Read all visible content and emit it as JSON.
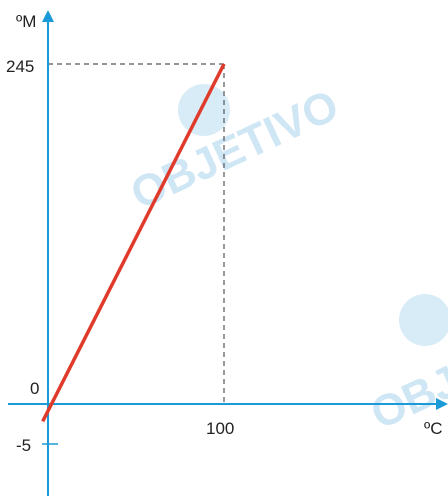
{
  "chart_data": {
    "type": "line",
    "title": "",
    "xlabel": "ºC",
    "ylabel": "ºM",
    "x_ticks": [
      "100"
    ],
    "y_ticks": [
      "245",
      "0",
      "-5"
    ],
    "series": [
      {
        "x": [
          -3,
          0,
          100
        ],
        "y": [
          -12.5,
          -5,
          245
        ]
      }
    ],
    "reference_point": {
      "x": 100,
      "y": 245
    },
    "guides": "dashed",
    "grid": false,
    "colors": {
      "line": "#e03a2b",
      "axes": "#1a9ad6",
      "guides": "#555555"
    }
  },
  "watermark": "OBJETIVO",
  "watermark_color": "#cfe6f5"
}
